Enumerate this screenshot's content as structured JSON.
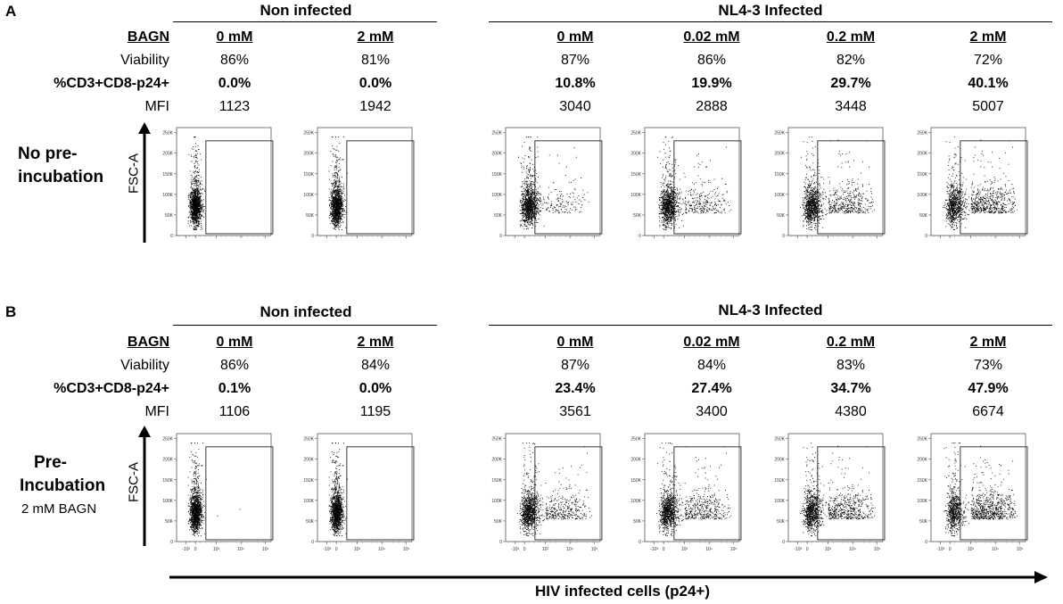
{
  "panels": [
    {
      "letter": "A",
      "condition": {
        "line1": "No pre-",
        "line2": "incubation",
        "sub": ""
      },
      "group_non": "Non infected",
      "group_inf": "NL4-3 Infected",
      "row_labels": {
        "bagn": "BAGN",
        "viability": "Viability",
        "pct": "%CD3+CD8-p24+",
        "mfi": "MFI"
      },
      "samples": [
        {
          "bagn": "0 mM",
          "viability": "86%",
          "pct": "0.0%",
          "mfi": "1123",
          "infected": false
        },
        {
          "bagn": "2 mM",
          "viability": "81%",
          "pct": "0.0%",
          "mfi": "1942",
          "infected": false
        },
        {
          "bagn": "0 mM",
          "viability": "87%",
          "pct": "10.8%",
          "mfi": "3040",
          "infected": true
        },
        {
          "bagn": "0.02 mM",
          "viability": "86%",
          "pct": "19.9%",
          "mfi": "2888",
          "infected": true
        },
        {
          "bagn": "0.2 mM",
          "viability": "82%",
          "pct": "29.7%",
          "mfi": "3448",
          "infected": true
        },
        {
          "bagn": "2 mM",
          "viability": "72%",
          "pct": "40.1%",
          "mfi": "5007",
          "infected": true
        }
      ]
    },
    {
      "letter": "B",
      "condition": {
        "line1": "Pre-",
        "line2": "Incubation",
        "sub": "2 mM BAGN"
      },
      "group_non": "Non infected",
      "group_inf": "NL4-3 Infected",
      "row_labels": {
        "bagn": "BAGN",
        "viability": "Viability",
        "pct": "%CD3+CD8-p24+",
        "mfi": "MFI"
      },
      "samples": [
        {
          "bagn": "0 mM",
          "viability": "86%",
          "pct": "0.1%",
          "mfi": "1106",
          "infected": false
        },
        {
          "bagn": "2 mM",
          "viability": "84%",
          "pct": "0.0%",
          "mfi": "1195",
          "infected": false
        },
        {
          "bagn": "0 mM",
          "viability": "87%",
          "pct": "23.4%",
          "mfi": "3561",
          "infected": true
        },
        {
          "bagn": "0.02 mM",
          "viability": "84%",
          "pct": "27.4%",
          "mfi": "3400",
          "infected": true
        },
        {
          "bagn": "0.2 mM",
          "viability": "83%",
          "pct": "34.7%",
          "mfi": "4380",
          "infected": true
        },
        {
          "bagn": "2 mM",
          "viability": "73%",
          "pct": "47.9%",
          "mfi": "6674",
          "infected": true
        }
      ]
    }
  ],
  "axes": {
    "y_title": "FSC-A",
    "x_title": "HIV infected cells (p24+)",
    "y_ticks": [
      "250K",
      "200K",
      "150K",
      "100K",
      "50K",
      "0"
    ],
    "x_ticks": [
      "-10³",
      "0",
      "10³",
      "10⁴",
      "10⁵"
    ]
  },
  "chart_data": {
    "type": "scatter",
    "title": "",
    "xlabel": "HIV infected cells (p24+)",
    "ylabel": "FSC-A",
    "ylim": [
      0,
      262144
    ],
    "y_tick_values": [
      0,
      50000,
      100000,
      150000,
      200000,
      250000
    ],
    "x_scale": "biexponential",
    "x_tick_values": [
      -1000,
      0,
      1000,
      10000,
      100000
    ],
    "gate": {
      "x_range": [
        500,
        200000
      ],
      "y_range": [
        0,
        230000
      ]
    },
    "series": [
      {
        "name": "A: No pre-incubation",
        "samples": [
          "Non infected 0 mM",
          "Non infected 2 mM",
          "NL4-3 0 mM",
          "NL4-3 0.02 mM",
          "NL4-3 0.2 mM",
          "NL4-3 2 mM"
        ],
        "gated_percent": [
          0.0,
          0.0,
          10.8,
          19.9,
          29.7,
          40.1
        ],
        "mfi": [
          1123,
          1942,
          3040,
          2888,
          3448,
          5007
        ],
        "viability_percent": [
          86,
          81,
          87,
          86,
          82,
          72
        ]
      },
      {
        "name": "B: Pre-incubation 2 mM BAGN",
        "samples": [
          "Non infected 0 mM",
          "Non infected 2 mM",
          "NL4-3 0 mM",
          "NL4-3 0.02 mM",
          "NL4-3 0.2 mM",
          "NL4-3 2 mM"
        ],
        "gated_percent": [
          0.1,
          0.0,
          23.4,
          27.4,
          34.7,
          47.9
        ],
        "mfi": [
          1106,
          1195,
          3561,
          3400,
          4380,
          6674
        ],
        "viability_percent": [
          86,
          84,
          87,
          84,
          83,
          73
        ]
      }
    ]
  }
}
